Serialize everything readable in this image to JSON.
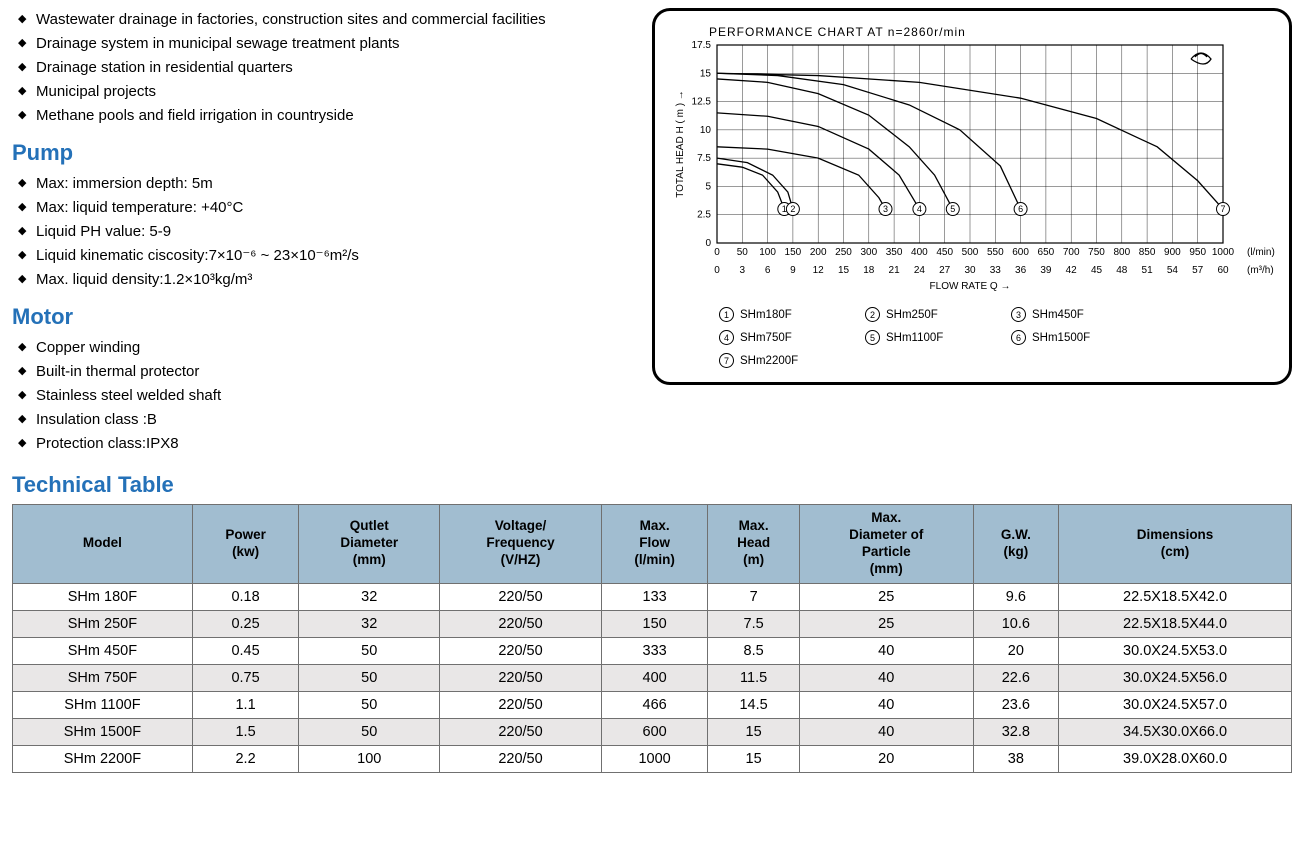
{
  "applications": [
    "Wastewater drainage in factories, construction sites and commercial facilities",
    "Drainage system in municipal sewage treatment plants",
    "Drainage station in residential quarters",
    "Municipal projects",
    "Methane pools and field irrigation in countryside"
  ],
  "pump_heading": "Pump",
  "pump_items": [
    "Max: immersion depth: 5m",
    "Max: liquid temperature: +40°C",
    "Liquid PH value: 5-9",
    "Liquid kinematic ciscosity:7×10⁻⁶ ~ 23×10⁻⁶m²/s",
    "Max. liquid density:1.2×10³kg/m³"
  ],
  "motor_heading": "Motor",
  "motor_items": [
    "Copper winding",
    "Built-in thermal protector",
    "Stainless steel welded shaft",
    "Insulation class :B",
    "Protection class:IPX8"
  ],
  "table_heading": "Technical Table",
  "table": {
    "columns": [
      "Model",
      "Power\n(kw)",
      "Qutlet\nDiameter\n(mm)",
      "Voltage/\nFrequency\n(V/HZ)",
      "Max.\nFlow\n(l/min)",
      "Max.\nHead\n(m)",
      "Max.\nDiameter of\nParticle\n(mm)",
      "G.W.\n(kg)",
      "Dimensions\n(cm)"
    ],
    "rows": [
      [
        "SHm 180F",
        "0.18",
        "32",
        "220/50",
        "133",
        "7",
        "25",
        "9.6",
        "22.5X18.5X42.0"
      ],
      [
        "SHm 250F",
        "0.25",
        "32",
        "220/50",
        "150",
        "7.5",
        "25",
        "10.6",
        "22.5X18.5X44.0"
      ],
      [
        "SHm 450F",
        "0.45",
        "50",
        "220/50",
        "333",
        "8.5",
        "40",
        "20",
        "30.0X24.5X53.0"
      ],
      [
        "SHm 750F",
        "0.75",
        "50",
        "220/50",
        "400",
        "11.5",
        "40",
        "22.6",
        "30.0X24.5X56.0"
      ],
      [
        "SHm 1100F",
        "1.1",
        "50",
        "220/50",
        "466",
        "14.5",
        "40",
        "23.6",
        "30.0X24.5X57.0"
      ],
      [
        "SHm 1500F",
        "1.5",
        "50",
        "220/50",
        "600",
        "15",
        "40",
        "32.8",
        "34.5X30.0X66.0"
      ],
      [
        "SHm 2200F",
        "2.2",
        "100",
        "220/50",
        "1000",
        "15",
        "20",
        "38",
        "39.0X28.0X60.0"
      ]
    ]
  },
  "chart": {
    "title": "PERFORMANCE  CHART  AT  n=2860r/min",
    "xlabel_top": "(l/min)",
    "xlabel_bottom": "(m³/h)",
    "xlabel_center": "FLOW  RATE Q  →",
    "ylabel": "TOTAL HEAD  H  ( m )  →",
    "x_lmin": {
      "min": 0,
      "max": 1000,
      "step": 50
    },
    "x_m3h": {
      "min": 0,
      "max": 60,
      "step": 3
    },
    "y": {
      "min": 0,
      "max": 17.5,
      "step": 2.5
    },
    "grid_color": "#000000",
    "line_color": "#000000",
    "line_width": 1.3,
    "font_size": 10,
    "legend": [
      {
        "n": "①",
        "label": "SHm180F"
      },
      {
        "n": "②",
        "label": "SHm250F"
      },
      {
        "n": "③",
        "label": "SHm450F"
      },
      {
        "n": "④",
        "label": "SHm750F"
      },
      {
        "n": "⑤",
        "label": "SHm1100F"
      },
      {
        "n": "⑥",
        "label": "SHm1500F"
      },
      {
        "n": "⑦",
        "label": "SHm2200F"
      }
    ],
    "curves": [
      {
        "id": 1,
        "pts": [
          [
            0,
            7
          ],
          [
            50,
            6.7
          ],
          [
            90,
            6.0
          ],
          [
            120,
            4.5
          ],
          [
            133,
            3.0
          ]
        ]
      },
      {
        "id": 2,
        "pts": [
          [
            0,
            7.5
          ],
          [
            60,
            7.1
          ],
          [
            110,
            6.0
          ],
          [
            140,
            4.5
          ],
          [
            150,
            3.0
          ]
        ]
      },
      {
        "id": 3,
        "pts": [
          [
            0,
            8.5
          ],
          [
            100,
            8.3
          ],
          [
            200,
            7.5
          ],
          [
            280,
            6.0
          ],
          [
            320,
            4.0
          ],
          [
            333,
            3.0
          ]
        ]
      },
      {
        "id": 4,
        "pts": [
          [
            0,
            11.5
          ],
          [
            100,
            11.2
          ],
          [
            200,
            10.3
          ],
          [
            300,
            8.3
          ],
          [
            360,
            6.0
          ],
          [
            400,
            3.0
          ]
        ]
      },
      {
        "id": 5,
        "pts": [
          [
            0,
            14.5
          ],
          [
            100,
            14.2
          ],
          [
            200,
            13.2
          ],
          [
            300,
            11.3
          ],
          [
            380,
            8.5
          ],
          [
            430,
            6.0
          ],
          [
            466,
            3.0
          ]
        ]
      },
      {
        "id": 6,
        "pts": [
          [
            0,
            15
          ],
          [
            120,
            14.8
          ],
          [
            250,
            14.0
          ],
          [
            380,
            12.2
          ],
          [
            480,
            10.0
          ],
          [
            560,
            6.8
          ],
          [
            600,
            3.0
          ]
        ]
      },
      {
        "id": 7,
        "pts": [
          [
            0,
            15
          ],
          [
            200,
            14.8
          ],
          [
            400,
            14.2
          ],
          [
            600,
            12.8
          ],
          [
            750,
            11.0
          ],
          [
            870,
            8.5
          ],
          [
            950,
            5.5
          ],
          [
            1000,
            3.0
          ]
        ]
      }
    ],
    "marker_y": 3.0
  }
}
